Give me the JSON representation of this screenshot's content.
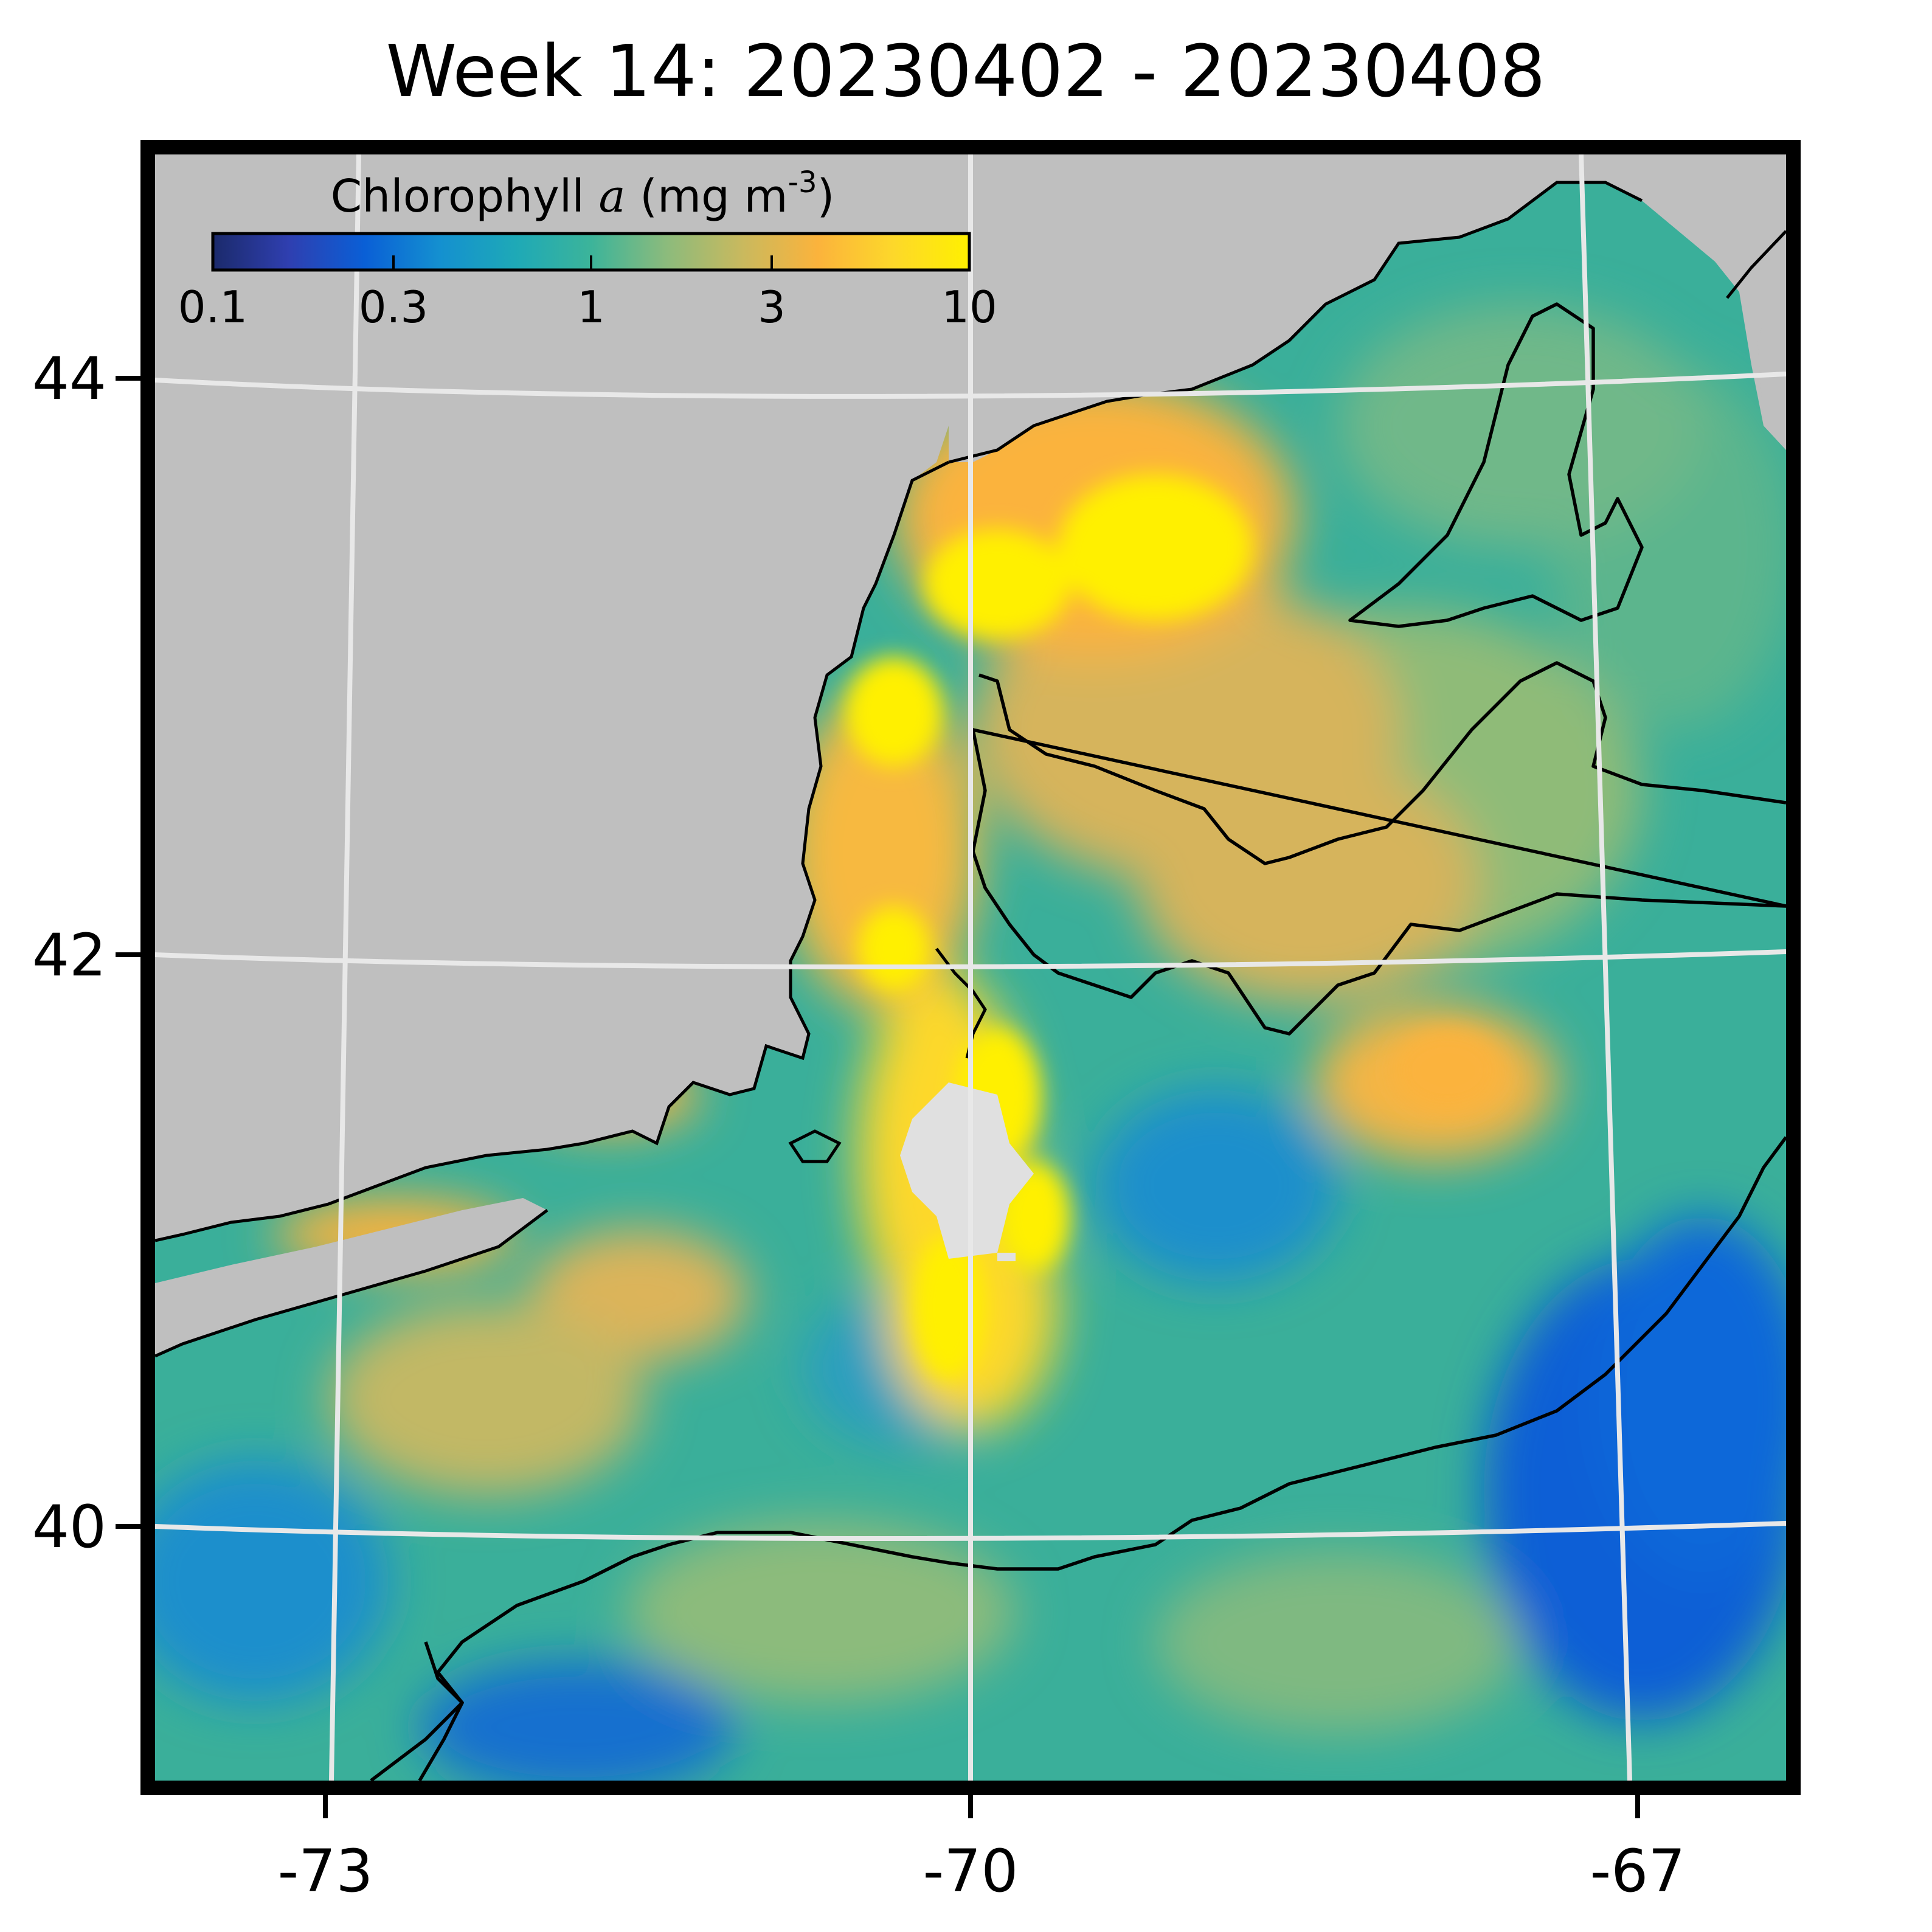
{
  "title": "Week 14: 20230402 - 20230408",
  "colorbar": {
    "label_text": "Chlorophyll ",
    "label_italic": "a",
    "label_units": " (mg m",
    "label_exp": "-3",
    "label_close": ")",
    "ticks": [
      "0.1",
      "0.3",
      "1",
      "3",
      "10"
    ],
    "colors": [
      "#1b2a6b",
      "#2f3fb0",
      "#0a5fd6",
      "#1490d0",
      "#1ea9b7",
      "#3cb49a",
      "#8cbb7c",
      "#c9b95e",
      "#fbb33c",
      "#fdd82a",
      "#fff000"
    ]
  },
  "axes": {
    "x_ticks": [
      "-73",
      "-70",
      "-67"
    ],
    "y_ticks": [
      "44",
      "42",
      "40"
    ]
  },
  "map": {
    "land_color": "#bfbfbf",
    "grid_color": "#e8e8e8",
    "cloud_color": "#e0e0e0",
    "frame_color": "#000000"
  }
}
